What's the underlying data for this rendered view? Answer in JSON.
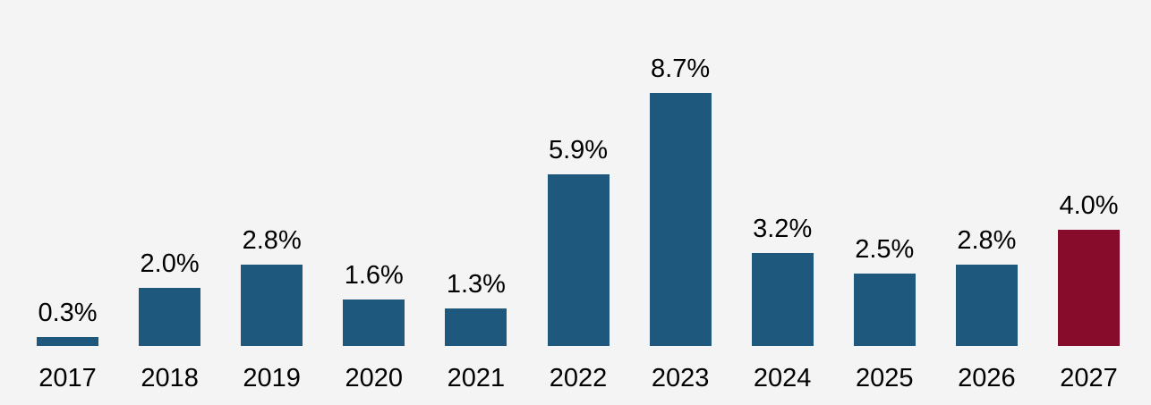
{
  "chart_data": {
    "type": "bar",
    "categories": [
      "2017",
      "2018",
      "2019",
      "2020",
      "2021",
      "2022",
      "2023",
      "2024",
      "2025",
      "2026",
      "2027"
    ],
    "values": [
      0.3,
      2.0,
      2.8,
      1.6,
      1.3,
      5.9,
      8.7,
      3.2,
      2.5,
      2.8,
      4.0
    ],
    "data_labels": [
      "0.3%",
      "2.0%",
      "2.8%",
      "1.6%",
      "1.3%",
      "5.9%",
      "8.7%",
      "3.2%",
      "2.5%",
      "2.8%",
      "4.0%"
    ],
    "bar_colors": [
      "#1e587c",
      "#1e587c",
      "#1e587c",
      "#1e587c",
      "#1e587c",
      "#1e587c",
      "#1e587c",
      "#1e587c",
      "#1e587c",
      "#1e587c",
      "#870b2a"
    ],
    "highlight_category": "2027",
    "colors": {
      "default_bar": "#1e587c",
      "highlight_bar": "#870b2a",
      "label_text": "#000000",
      "background": "#f4f4f4"
    },
    "title": "",
    "xlabel": "",
    "ylabel": "",
    "ylim": [
      0,
      9.5
    ],
    "grid": false,
    "legend": null,
    "axis_line": false
  }
}
